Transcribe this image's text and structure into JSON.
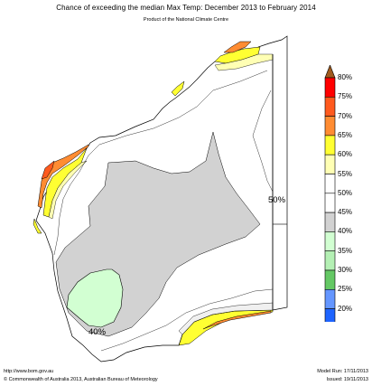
{
  "title": "Chance of exceeding the median Max Temp: December 2013 to February 2014",
  "subtitle": "Product of the National Climate Centre",
  "map_labels": {
    "fifty": "50%",
    "forty": "40%"
  },
  "legend": {
    "entries": [
      {
        "label": "80%",
        "color": "#ff0000"
      },
      {
        "label": "75%",
        "color": "#ff5a1e"
      },
      {
        "label": "70%",
        "color": "#ff8c32"
      },
      {
        "label": "65%",
        "color": "#ffff32"
      },
      {
        "label": "60%",
        "color": "#ffffb4"
      },
      {
        "label": "55%",
        "color": "#ffffff"
      },
      {
        "label": "50%",
        "color": "#ffffff"
      },
      {
        "label": "45%",
        "color": "#d2d2d2"
      },
      {
        "label": "40%",
        "color": "#d2ffd2"
      },
      {
        "label": "35%",
        "color": "#b4f0b4"
      },
      {
        "label": "30%",
        "color": "#64c864"
      },
      {
        "label": "25%",
        "color": "#6496ff"
      },
      {
        "label": "20%",
        "color": "#1e64ff"
      }
    ],
    "top_arrow_color": "#a05a1e",
    "bottom_arrow_color": "#8c1ec8"
  },
  "footer": {
    "url": "http://www.bom.gov.au",
    "copyright": "© Commonwealth of Australia 2013, Australian Bureau of Meteorology",
    "model_run": "Model Run: 17/11/2013",
    "issued": "Issued: 19/11/2013"
  }
}
